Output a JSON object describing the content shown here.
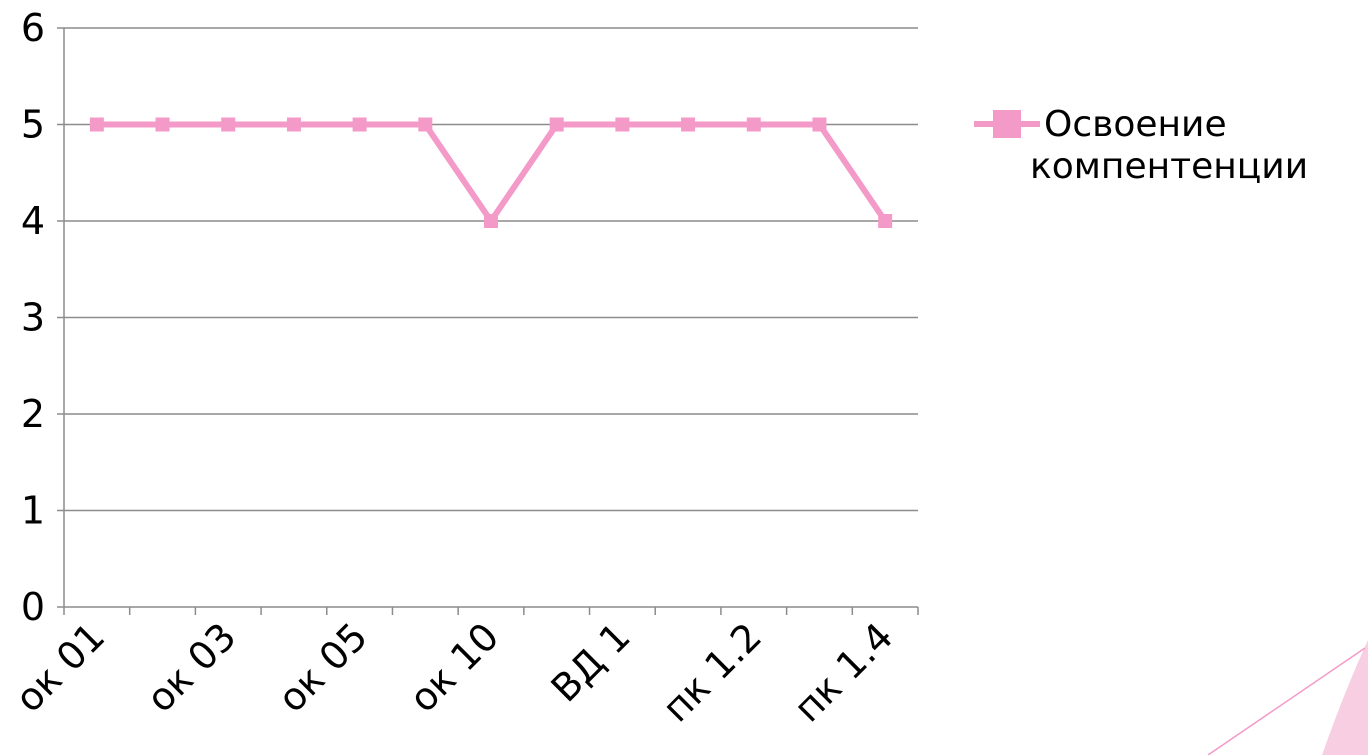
{
  "chart_data": {
    "type": "line",
    "categories": [
      "ок 01",
      "",
      "ок 03",
      "",
      "ок 05",
      "",
      "ок 10",
      "",
      "ВД 1",
      "",
      "пк 1.2",
      "",
      "пк 1.4"
    ],
    "series": [
      {
        "name": "Освоение компентенции",
        "values": [
          5,
          5,
          5,
          5,
          5,
          5,
          4,
          5,
          5,
          5,
          5,
          5,
          4
        ],
        "color": "#F49AC9"
      }
    ],
    "ylim": [
      0,
      6
    ],
    "yticks": [
      "0",
      "1",
      "2",
      "3",
      "4",
      "5",
      "6"
    ],
    "grid": true,
    "legend": {
      "placement": "right",
      "lines": [
        "Освоение",
        "компентенции"
      ]
    },
    "decoration_color": "#F49AC9"
  }
}
